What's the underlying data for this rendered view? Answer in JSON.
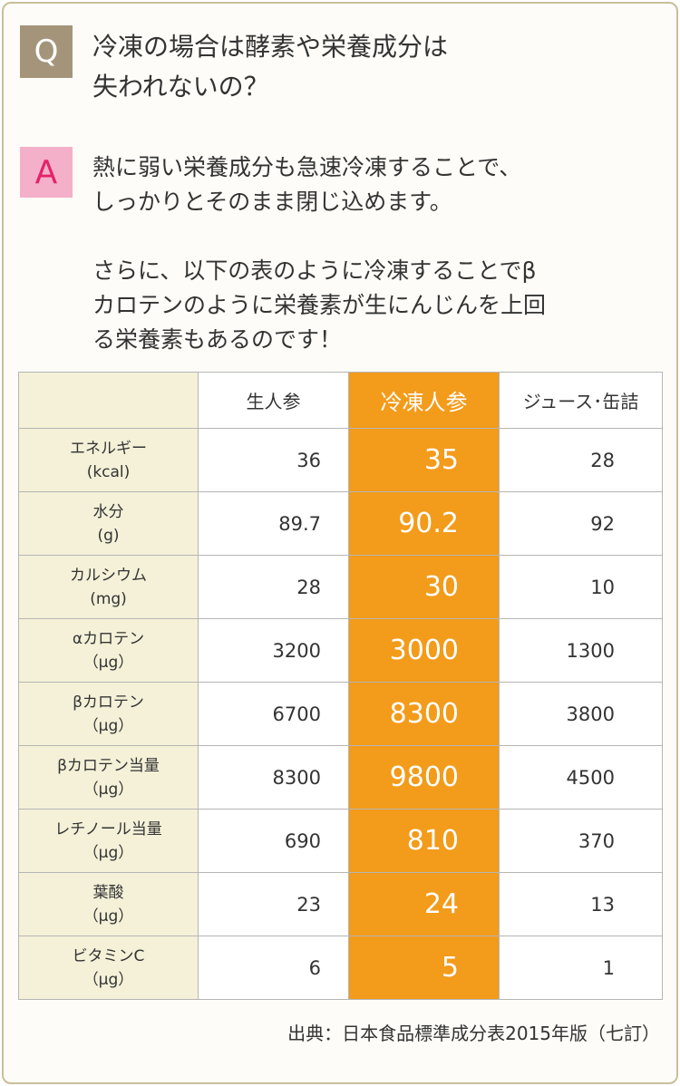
{
  "question": {
    "badge": "Q",
    "line1": "冷凍の場合は酵素や栄養成分は",
    "line2": "失われないの？"
  },
  "answer": {
    "badge": "A",
    "p1_line1": "熱に弱い栄養成分も急速冷凍することで、",
    "p1_line2": "しっかりとそのまま閉じ込めます。",
    "p2_line1": "さらに、以下の表のように冷凍することでβ",
    "p2_line2": "カロテンのように栄養素が生にんじんを上回",
    "p2_line3": "る栄養素もあるのです！"
  },
  "table": {
    "headers": [
      "",
      "生人参",
      "冷凍人参",
      "ジュース･缶詰"
    ],
    "rows": [
      {
        "name": "エネルギー",
        "unit": "(kcal)",
        "raw": "36",
        "frozen": "35",
        "juice": "28"
      },
      {
        "name": "水分",
        "unit": "(g)",
        "raw": "89.7",
        "frozen": "90.2",
        "juice": "92"
      },
      {
        "name": "カルシウム",
        "unit": "(mg)",
        "raw": "28",
        "frozen": "30",
        "juice": "10"
      },
      {
        "name": "αカロテン",
        "unit": "（μg）",
        "raw": "3200",
        "frozen": "3000",
        "juice": "1300"
      },
      {
        "name": "βカロテン",
        "unit": "（μg）",
        "raw": "6700",
        "frozen": "8300",
        "juice": "3800"
      },
      {
        "name": "βカロテン当量",
        "unit": "（μg）",
        "raw": "8300",
        "frozen": "9800",
        "juice": "4500"
      },
      {
        "name": "レチノール当量",
        "unit": "（μg）",
        "raw": "690",
        "frozen": "810",
        "juice": "370"
      },
      {
        "name": "葉酸",
        "unit": "（μg）",
        "raw": "23",
        "frozen": "24",
        "juice": "13"
      },
      {
        "name": "ビタミンC",
        "unit": "（μg）",
        "raw": "6",
        "frozen": "5",
        "juice": "1"
      }
    ]
  },
  "source": "出典：日本食品標準成分表2015年版（七訂）",
  "colors": {
    "q_badge": "#a4957a",
    "a_badge_bg": "#f4b0c8",
    "a_badge_text": "#e5226b",
    "highlight": "#f39b1a",
    "label_bg": "#f4f1d8",
    "frame": "#c9bf98"
  }
}
